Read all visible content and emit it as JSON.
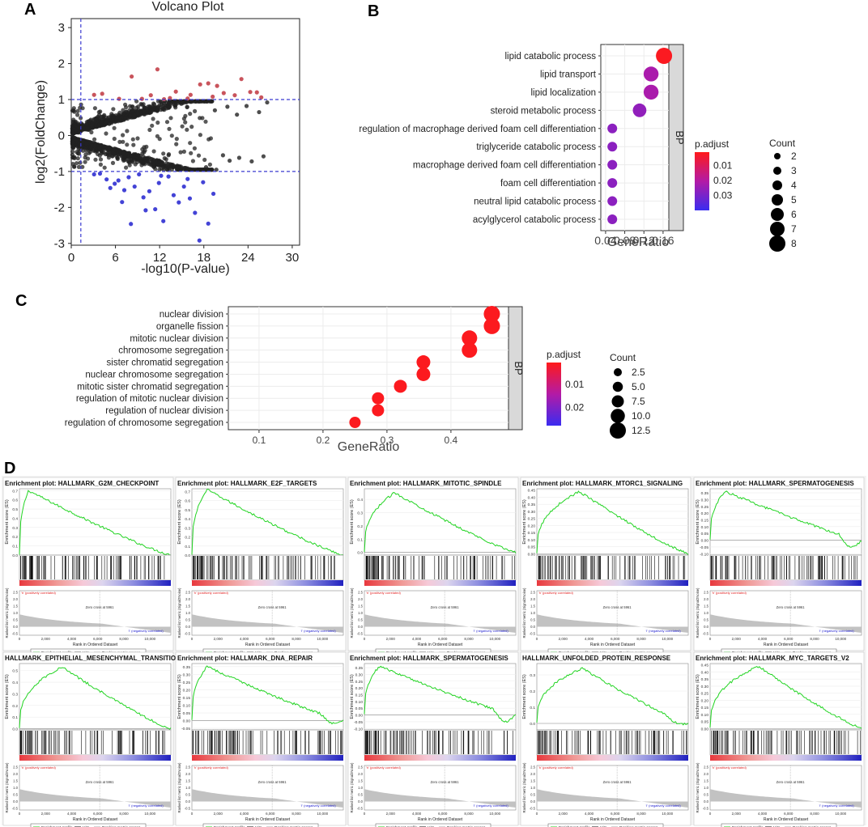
{
  "panels": {
    "A": "A",
    "B": "B",
    "C": "C",
    "D": "D"
  },
  "chart_data": [
    {
      "id": "A",
      "type": "scatter",
      "title": "Volcano Plot",
      "xlabel": "-log10(P-value)",
      "ylabel": "log2(FoldChange)",
      "xlim": [
        0,
        31
      ],
      "ylim": [
        -3.05,
        3.25
      ],
      "xticks": [
        0,
        6,
        12,
        18,
        24,
        30
      ],
      "yticks": [
        3,
        2,
        1,
        0,
        -1,
        -2,
        -3
      ],
      "thresholds": {
        "x": 1.3,
        "y_up": 1,
        "y_down": -1
      },
      "colors": {
        "up": "#c9545c",
        "down": "#4343d6",
        "ns": "#222222",
        "threshold": "#3b3bd1"
      },
      "up_points": [
        [
          3.1,
          1.13
        ],
        [
          4.2,
          1.16
        ],
        [
          6.5,
          1.02
        ],
        [
          8.2,
          1.64
        ],
        [
          9.6,
          1.02
        ],
        [
          10.8,
          1.12
        ],
        [
          11.7,
          1.84
        ],
        [
          13.4,
          1.04
        ],
        [
          14.2,
          1.22
        ],
        [
          16.2,
          1.13
        ],
        [
          17.5,
          1.42
        ],
        [
          18.6,
          1.45
        ],
        [
          19.8,
          1.38
        ],
        [
          20.7,
          1.18
        ],
        [
          22.2,
          1.12
        ],
        [
          23.1,
          1.57
        ],
        [
          24.3,
          1.21
        ],
        [
          25.2,
          1.2
        ],
        [
          25.8,
          1.06
        ],
        [
          19.2,
          1.08
        ],
        [
          15.8,
          1.03
        ],
        [
          12.6,
          1.01
        ]
      ],
      "down_points": [
        [
          3.1,
          -1.08
        ],
        [
          3.9,
          -1.06
        ],
        [
          4.8,
          -1.22
        ],
        [
          5.3,
          -1.46
        ],
        [
          5.9,
          -1.34
        ],
        [
          6.4,
          -1.25
        ],
        [
          7.2,
          -1.52
        ],
        [
          7.8,
          -1.16
        ],
        [
          8.6,
          -1.42
        ],
        [
          9.2,
          -1.08
        ],
        [
          9.8,
          -1.72
        ],
        [
          10.6,
          -1.55
        ],
        [
          11.4,
          -2.05
        ],
        [
          11.9,
          -1.32
        ],
        [
          12.5,
          -2.38
        ],
        [
          13.2,
          -1.14
        ],
        [
          13.9,
          -1.66
        ],
        [
          14.6,
          -1.86
        ],
        [
          15.3,
          -1.42
        ],
        [
          16.1,
          -1.75
        ],
        [
          16.8,
          -2.15
        ],
        [
          17.4,
          -2.92
        ],
        [
          17.9,
          -1.3
        ],
        [
          18.6,
          -2.45
        ],
        [
          19.3,
          -1.62
        ],
        [
          8.1,
          -2.46
        ],
        [
          10.1,
          -2.08
        ],
        [
          12.2,
          -1.12
        ],
        [
          6.9,
          -1.85
        ],
        [
          15.8,
          -1.21
        ]
      ],
      "extra_ns_points": [
        [
          19.5,
          0.7
        ],
        [
          21.2,
          0.8
        ],
        [
          23.8,
          0.82
        ],
        [
          26.6,
          0.92
        ],
        [
          25.5,
          0.65
        ],
        [
          22.5,
          0.58
        ],
        [
          20.6,
          -0.55
        ],
        [
          21.5,
          -0.7
        ],
        [
          22.8,
          -0.62
        ],
        [
          24.5,
          -0.72
        ],
        [
          26.1,
          -0.58
        ],
        [
          19.7,
          -0.95
        ],
        [
          18.3,
          -0.88
        ]
      ]
    },
    {
      "id": "B",
      "type": "scatter",
      "subtype": "dot-plot",
      "xlabel": "GeneRatio",
      "facet": "BP",
      "xlim": [
        0.03,
        0.172
      ],
      "xticks": [
        0.04,
        0.08,
        0.12,
        0.16
      ],
      "xtick_labels": [
        "0.04",
        "0.08",
        "0.12",
        "0.16"
      ],
      "categories": [
        "lipid catabolic process",
        "lipid transport",
        "lipid localization",
        "steroid metabolic process",
        "regulation of macrophage derived foam cell differentiation",
        "triglyceride catabolic process",
        "macrophage derived foam cell differentiation",
        "foam cell differentiation",
        "neutral lipid catabolic process",
        "acylglycerol catabolic process"
      ],
      "gene_ratio": [
        0.162,
        0.135,
        0.135,
        0.111,
        0.054,
        0.054,
        0.054,
        0.054,
        0.054,
        0.054
      ],
      "count": [
        8,
        7,
        7,
        6,
        3,
        3,
        3,
        3,
        3,
        3
      ],
      "p_adjust": [
        0.002,
        0.022,
        0.022,
        0.026,
        0.027,
        0.027,
        0.027,
        0.027,
        0.027,
        0.027
      ],
      "color_legend": {
        "title": "p.adjust",
        "ticks": [
          "0.01",
          "0.02",
          "0.03"
        ],
        "range": [
          0.001,
          0.04
        ]
      },
      "size_legend": {
        "title": "Count",
        "values": [
          "2",
          "3",
          "4",
          "5",
          "6",
          "7",
          "8"
        ]
      }
    },
    {
      "id": "C",
      "type": "scatter",
      "subtype": "dot-plot",
      "xlabel": "GeneRatio",
      "facet": "BP",
      "xlim": [
        0.052,
        0.49
      ],
      "xticks": [
        0.1,
        0.2,
        0.3,
        0.4
      ],
      "xtick_labels": [
        "0.1",
        "0.2",
        "0.3",
        "0.4"
      ],
      "categories": [
        "nuclear division",
        "organelle fission",
        "mitotic nuclear division",
        "chromosome segregation",
        "sister chromatid segregation",
        "nuclear chromosome segregation",
        "mitotic sister chromatid segregation",
        "regulation of mitotic nuclear division",
        "regulation of nuclear division",
        "regulation of chromosome segregation"
      ],
      "gene_ratio": [
        0.464,
        0.464,
        0.429,
        0.429,
        0.357,
        0.357,
        0.321,
        0.286,
        0.286,
        0.25
      ],
      "count": [
        13,
        13,
        12,
        12,
        10,
        10,
        9,
        8,
        8,
        7
      ],
      "p_adjust": [
        0.001,
        0.001,
        0.001,
        0.001,
        0.001,
        0.001,
        0.001,
        0.001,
        0.001,
        0.001
      ],
      "color_legend": {
        "title": "p.adjust",
        "ticks": [
          "0.01",
          "0.02"
        ],
        "range": [
          0.0005,
          0.028
        ]
      },
      "size_legend": {
        "title": "Count",
        "values": [
          "2.5",
          "5.0",
          "7.5",
          "10.0",
          "12.5"
        ]
      }
    },
    {
      "id": "D",
      "type": "line",
      "subtype": "gsea-enrichment-plots",
      "xlabel": "Rank in Ordered Dataset",
      "ylabel_top": "Enrichment score (ES)",
      "ylabel_bottom": "Ranked list metric (Signal2Noise)",
      "xticks": [
        "0",
        "2,000",
        "4,000",
        "6,000",
        "8,000",
        "10,000"
      ],
      "metric_yticks": [
        "2.5",
        "2.0",
        "1.5",
        "1.0",
        "0.5",
        "0.0",
        "-0.5"
      ],
      "pos_label": "'h' (positively correlated)",
      "neg_label": "'l' (negatively correlated)",
      "zero_cross": "Zero cross at 5961",
      "legend": [
        "Enrichment profile",
        "Hits",
        "Ranking metric scores"
      ],
      "plots": [
        {
          "title": "Enrichment plot: HALLMARK_G2M_CHECKPOINT",
          "yticks": [
            "0.7",
            "0.6",
            "0.5",
            "0.4",
            "0.3",
            "0.2",
            "0.1",
            "0.0"
          ],
          "ymin": 0,
          "ymax": 0.72,
          "peak_es": 0.7,
          "peak_x": 0.06,
          "end_es": 0.0
        },
        {
          "title": "Enrichment plot: HALLMARK_E2F_TARGETS",
          "yticks": [
            "0.7",
            "0.6",
            "0.5",
            "0.4",
            "0.3",
            "0.2",
            "0.1",
            "0.0"
          ],
          "ymin": 0,
          "ymax": 0.73,
          "peak_es": 0.72,
          "peak_x": 0.1,
          "end_es": 0.0
        },
        {
          "title": "Enrichment plot: HALLMARK_MITOTIC_SPINDLE",
          "yticks": [
            "0.4",
            "0.3",
            "0.2",
            "0.1",
            "0.0"
          ],
          "ymin": -0.02,
          "ymax": 0.48,
          "peak_es": 0.45,
          "peak_x": 0.2,
          "end_es": 0.0
        },
        {
          "title": "Enrichment plot: HALLMARK_MTORC1_SIGNALING",
          "yticks": [
            "0.45",
            "0.40",
            "0.35",
            "0.30",
            "0.25",
            "0.20",
            "0.15",
            "0.10",
            "0.05",
            "0.00"
          ],
          "ymin": -0.01,
          "ymax": 0.46,
          "peak_es": 0.44,
          "peak_x": 0.28,
          "end_es": 0.0
        },
        {
          "title": "Enrichment plot: HALLMARK_SPERMATOGENESIS",
          "yticks": [
            "0.35",
            "0.30",
            "0.25",
            "0.20",
            "0.15",
            "0.10",
            "0.05",
            "0.00",
            "-0.05",
            "-0.10"
          ],
          "ymin": -0.11,
          "ymax": 0.38,
          "peak_es": 0.36,
          "peak_x": 0.1,
          "end_es": 0.0
        },
        {
          "title": "HALLMARK_EPITHELIAL_MESENCHYMAL_TRANSITION",
          "yticks": [
            "0.5",
            "0.4",
            "0.3",
            "0.2",
            "0.1",
            "0.0"
          ],
          "ymin": -0.01,
          "ymax": 0.56,
          "peak_es": 0.53,
          "peak_x": 0.28,
          "end_es": 0.0
        },
        {
          "title": "Enrichment plot: HALLMARK_DNA_REPAIR",
          "yticks": [
            "0.35",
            "0.30",
            "0.25",
            "0.20",
            "0.15",
            "0.10",
            "0.05",
            "0.00",
            "-0.05"
          ],
          "ymin": -0.06,
          "ymax": 0.37,
          "peak_es": 0.35,
          "peak_x": 0.1,
          "end_es": 0.0
        },
        {
          "title": "Enrichment plot: HALLMARK_SPERMATOGENESIS",
          "yticks": [
            "0.35",
            "0.30",
            "0.25",
            "0.20",
            "0.15",
            "0.10",
            "0.05",
            "0.00",
            "-0.05",
            "-0.10"
          ],
          "ymin": -0.11,
          "ymax": 0.38,
          "peak_es": 0.36,
          "peak_x": 0.1,
          "end_es": 0.0
        },
        {
          "title": "HALLMARK_UNFOLDED_PROTEIN_RESPONSE",
          "yticks": [
            "0.3",
            "0.2",
            "0.1",
            "0.0"
          ],
          "ymin": -0.04,
          "ymax": 0.37,
          "peak_es": 0.34,
          "peak_x": 0.3,
          "end_es": 0.0
        },
        {
          "title": "Enrichment plot: HALLMARK_MYC_TARGETS_V2",
          "yticks": [
            "0.45",
            "0.40",
            "0.35",
            "0.30",
            "0.25",
            "0.20",
            "0.15",
            "0.10",
            "0.05",
            "0.00"
          ],
          "ymin": -0.01,
          "ymax": 0.46,
          "peak_es": 0.44,
          "peak_x": 0.32,
          "end_es": 0.0
        }
      ]
    }
  ]
}
